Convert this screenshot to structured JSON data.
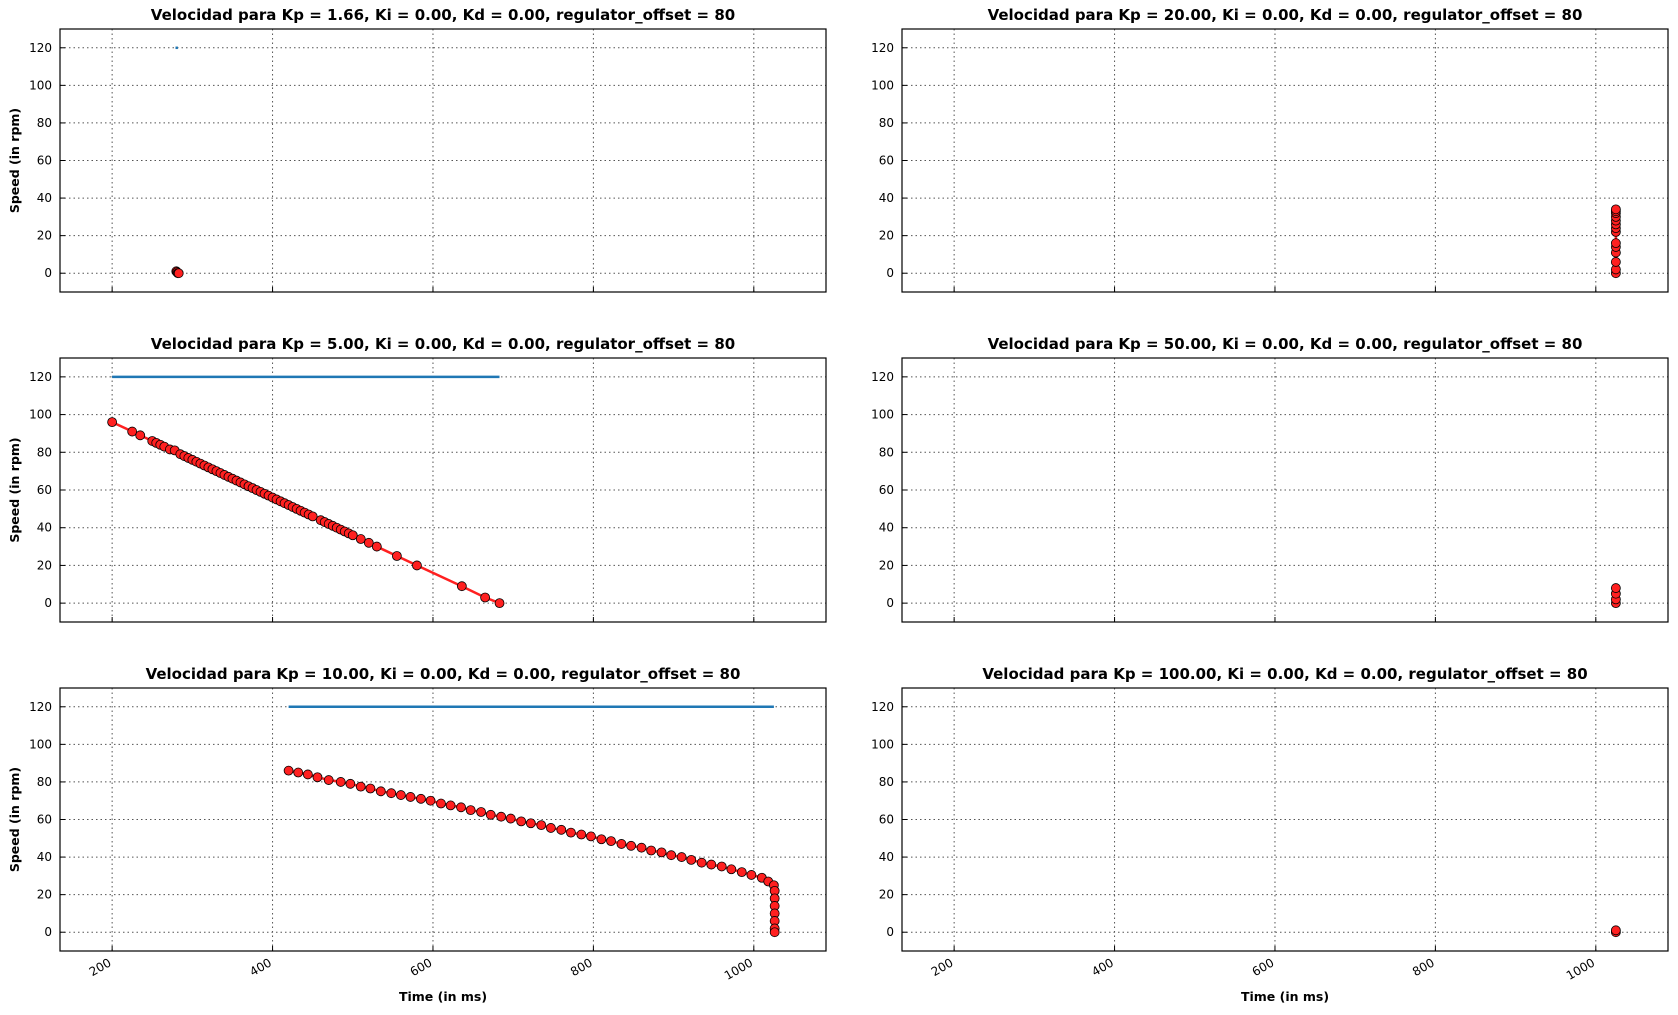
{
  "chart_data": [
    {
      "type": "line",
      "title": "Velocidad para Kp = 1.66, Ki = 0.00, Kd = 0.00, regulator_offset = 80",
      "ylabel": "Speed (in rpm)",
      "xlim": [
        135,
        1090
      ],
      "ylim": [
        -10,
        130
      ],
      "xticks": [
        200,
        400,
        600,
        800,
        1000
      ],
      "yticks": [
        0,
        20,
        40,
        60,
        80,
        100,
        120
      ],
      "grid": true,
      "series": [
        {
          "color": "#1f77b4",
          "x": [
            279,
            282
          ],
          "values": [
            120,
            120
          ]
        },
        {
          "color": "#ff2020",
          "marker": "o",
          "x": [
            280,
            281,
            282,
            283
          ],
          "values": [
            1,
            0.5,
            0,
            0
          ]
        }
      ]
    },
    {
      "type": "line",
      "title": "Velocidad para Kp = 20.00, Ki = 0.00, Kd = 0.00, regulator_offset = 80",
      "ylabel": null,
      "xlim": [
        135,
        1090
      ],
      "ylim": [
        -10,
        130
      ],
      "xticks": [
        200,
        400,
        600,
        800,
        1000
      ],
      "yticks": [
        0,
        20,
        40,
        60,
        80,
        100,
        120
      ],
      "grid": true,
      "series": [
        {
          "color": "#ff2020",
          "marker": "o",
          "x": [
            1025,
            1025,
            1025,
            1025,
            1025,
            1025,
            1025,
            1025,
            1025,
            1025,
            1025,
            1025,
            1025,
            1025
          ],
          "values": [
            0,
            2,
            6,
            11,
            14,
            16,
            22,
            24,
            26,
            28,
            30,
            32,
            33,
            34
          ]
        }
      ]
    },
    {
      "type": "line",
      "title": "Velocidad para Kp = 5.00, Ki = 0.00, Kd = 0.00, regulator_offset = 80",
      "ylabel": "Speed (in rpm)",
      "xlim": [
        135,
        1090
      ],
      "ylim": [
        -10,
        130
      ],
      "xticks": [
        200,
        400,
        600,
        800,
        1000
      ],
      "yticks": [
        0,
        20,
        40,
        60,
        80,
        100,
        120
      ],
      "grid": true,
      "series": [
        {
          "color": "#1f77b4",
          "x": [
            200,
            683
          ],
          "values": [
            120,
            120
          ]
        },
        {
          "color": "#ff2020",
          "marker": "o",
          "x": [
            200,
            225,
            235,
            250,
            255,
            260,
            265,
            272,
            278,
            285,
            290,
            295,
            300,
            305,
            310,
            315,
            320,
            325,
            330,
            335,
            340,
            345,
            350,
            355,
            360,
            365,
            370,
            375,
            380,
            385,
            390,
            395,
            400,
            405,
            410,
            415,
            420,
            425,
            430,
            435,
            440,
            445,
            450,
            460,
            465,
            470,
            475,
            480,
            485,
            490,
            495,
            500,
            510,
            520,
            530,
            555,
            580,
            636,
            665,
            683
          ],
          "values": [
            96,
            91,
            89,
            86,
            85,
            84,
            83,
            81.5,
            81,
            79,
            78,
            77,
            76,
            75,
            74,
            73,
            72,
            71,
            70,
            69,
            68,
            67,
            66,
            65,
            64,
            63,
            62,
            61,
            60,
            59,
            58,
            57,
            56,
            55,
            54,
            53,
            52,
            51,
            50,
            49,
            48,
            47,
            46,
            44,
            43,
            42,
            41,
            40,
            39,
            38,
            37,
            36,
            34,
            32,
            30,
            25,
            20,
            9,
            3,
            0
          ]
        }
      ]
    },
    {
      "type": "line",
      "title": "Velocidad para Kp = 50.00, Ki = 0.00, Kd = 0.00, regulator_offset = 80",
      "ylabel": null,
      "xlim": [
        135,
        1090
      ],
      "ylim": [
        -10,
        130
      ],
      "xticks": [
        200,
        400,
        600,
        800,
        1000
      ],
      "yticks": [
        0,
        20,
        40,
        60,
        80,
        100,
        120
      ],
      "grid": true,
      "series": [
        {
          "color": "#ff2020",
          "marker": "o",
          "x": [
            1025,
            1025,
            1025,
            1025
          ],
          "values": [
            0,
            2,
            5,
            8
          ]
        }
      ]
    },
    {
      "type": "line",
      "title": "Velocidad para Kp = 10.00, Ki = 0.00, Kd = 0.00, regulator_offset = 80",
      "ylabel": "Speed (in rpm)",
      "xlabel": "Time (in ms)",
      "xlim": [
        135,
        1090
      ],
      "ylim": [
        -10,
        130
      ],
      "xticks": [
        200,
        400,
        600,
        800,
        1000
      ],
      "yticks": [
        0,
        20,
        40,
        60,
        80,
        100,
        120
      ],
      "grid": true,
      "series": [
        {
          "color": "#1f77b4",
          "x": [
            420,
            1025
          ],
          "values": [
            120,
            120
          ]
        },
        {
          "color": "#ff2020",
          "marker": "o",
          "x": [
            420,
            432,
            444,
            456,
            470,
            485,
            497,
            510,
            522,
            535,
            548,
            560,
            572,
            585,
            597,
            610,
            622,
            635,
            647,
            660,
            672,
            685,
            697,
            710,
            722,
            735,
            747,
            760,
            772,
            785,
            797,
            810,
            822,
            835,
            847,
            860,
            872,
            885,
            897,
            910,
            922,
            935,
            947,
            960,
            972,
            985,
            997,
            1010,
            1018,
            1025,
            1026,
            1026,
            1026,
            1026,
            1026,
            1026,
            1026
          ],
          "values": [
            86,
            85,
            84,
            82.5,
            81,
            80,
            79,
            77.5,
            76.5,
            75,
            74,
            73,
            72,
            71,
            70,
            68.5,
            67.5,
            66.5,
            65,
            64,
            62.5,
            61.5,
            60.5,
            59,
            58,
            57,
            55.5,
            54.5,
            53,
            52,
            51,
            49.5,
            48.5,
            47,
            46,
            45,
            43.5,
            42.5,
            41,
            40,
            38.5,
            37,
            36,
            35,
            33.5,
            32,
            30.5,
            29,
            27,
            25,
            22,
            18,
            14,
            10,
            6,
            2,
            0
          ]
        }
      ]
    },
    {
      "type": "line",
      "title": "Velocidad para Kp = 100.00, Ki = 0.00, Kd = 0.00, regulator_offset = 80",
      "ylabel": null,
      "xlabel": "Time (in ms)",
      "xlim": [
        135,
        1090
      ],
      "ylim": [
        -10,
        130
      ],
      "xticks": [
        200,
        400,
        600,
        800,
        1000
      ],
      "yticks": [
        0,
        20,
        40,
        60,
        80,
        100,
        120
      ],
      "grid": true,
      "series": [
        {
          "color": "#ff2020",
          "marker": "o",
          "x": [
            1025,
            1025
          ],
          "values": [
            0,
            1
          ]
        }
      ]
    }
  ]
}
